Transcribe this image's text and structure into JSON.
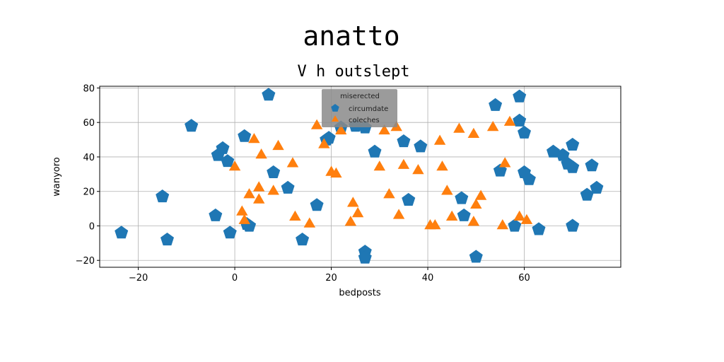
{
  "chart_data": {
    "type": "scatter",
    "title": "anatto",
    "subtitle": "V h outslept",
    "xlabel": "bedposts",
    "ylabel": "wanyoro",
    "xlim": [
      -28,
      80
    ],
    "ylim": [
      -24,
      81
    ],
    "xticks": [
      -20,
      0,
      20,
      40,
      60
    ],
    "yticks": [
      -20,
      0,
      20,
      40,
      60,
      80
    ],
    "grid": true,
    "legend": {
      "title": "miserected",
      "placement": "top-center"
    },
    "series": [
      {
        "name": "circumdate",
        "color": "#1f77b4",
        "marker": "pentagon",
        "points": [
          [
            -23.5,
            -4
          ],
          [
            -14,
            -8
          ],
          [
            -15,
            17
          ],
          [
            -9,
            58
          ],
          [
            -4,
            6
          ],
          [
            -3.5,
            41
          ],
          [
            -2.5,
            45
          ],
          [
            -1.5,
            37.5
          ],
          [
            -1,
            -4
          ],
          [
            2,
            52
          ],
          [
            2.5,
            1
          ],
          [
            3,
            0
          ],
          [
            7,
            76
          ],
          [
            8,
            31
          ],
          [
            11,
            22
          ],
          [
            14,
            -8
          ],
          [
            17,
            12
          ],
          [
            19,
            50
          ],
          [
            19.5,
            51
          ],
          [
            22,
            57
          ],
          [
            25,
            58
          ],
          [
            27,
            57
          ],
          [
            27,
            -15
          ],
          [
            27,
            -18.5
          ],
          [
            29,
            43
          ],
          [
            35,
            49
          ],
          [
            36,
            15
          ],
          [
            38.5,
            46
          ],
          [
            47,
            16
          ],
          [
            47.5,
            6
          ],
          [
            50,
            -18
          ],
          [
            54,
            70
          ],
          [
            55,
            32
          ],
          [
            58,
            0
          ],
          [
            59,
            61
          ],
          [
            59,
            75
          ],
          [
            60,
            31
          ],
          [
            60,
            54
          ],
          [
            61,
            27
          ],
          [
            63,
            -2
          ],
          [
            66,
            43
          ],
          [
            68,
            41
          ],
          [
            69,
            36
          ],
          [
            70,
            34
          ],
          [
            70,
            47
          ],
          [
            70,
            0
          ],
          [
            73,
            18
          ],
          [
            74,
            35
          ],
          [
            75,
            22
          ]
        ]
      },
      {
        "name": "coleches",
        "color": "#ff7f0e",
        "marker": "triangle",
        "points": [
          [
            0,
            34
          ],
          [
            1.5,
            8
          ],
          [
            2,
            3
          ],
          [
            3,
            18
          ],
          [
            4,
            50
          ],
          [
            5,
            22
          ],
          [
            5,
            15
          ],
          [
            5.5,
            41
          ],
          [
            8,
            20
          ],
          [
            9,
            46
          ],
          [
            12,
            36
          ],
          [
            12.5,
            5
          ],
          [
            15.5,
            1
          ],
          [
            17,
            58
          ],
          [
            18.5,
            47
          ],
          [
            20,
            31
          ],
          [
            21,
            30
          ],
          [
            22,
            55
          ],
          [
            24,
            2
          ],
          [
            24.5,
            13
          ],
          [
            25.5,
            7
          ],
          [
            30,
            34
          ],
          [
            31,
            55
          ],
          [
            32,
            18
          ],
          [
            33.5,
            57
          ],
          [
            34,
            6
          ],
          [
            35,
            35
          ],
          [
            38,
            32
          ],
          [
            40.5,
            0
          ],
          [
            41.5,
            0
          ],
          [
            42.5,
            49
          ],
          [
            43,
            34
          ],
          [
            44,
            20
          ],
          [
            45,
            5
          ],
          [
            46.5,
            56
          ],
          [
            49.5,
            53
          ],
          [
            49.5,
            2
          ],
          [
            50,
            12
          ],
          [
            51,
            17
          ],
          [
            53.5,
            57
          ],
          [
            55.5,
            0
          ],
          [
            56,
            36
          ],
          [
            57,
            60
          ],
          [
            59,
            5
          ],
          [
            60.5,
            3
          ]
        ]
      }
    ]
  }
}
